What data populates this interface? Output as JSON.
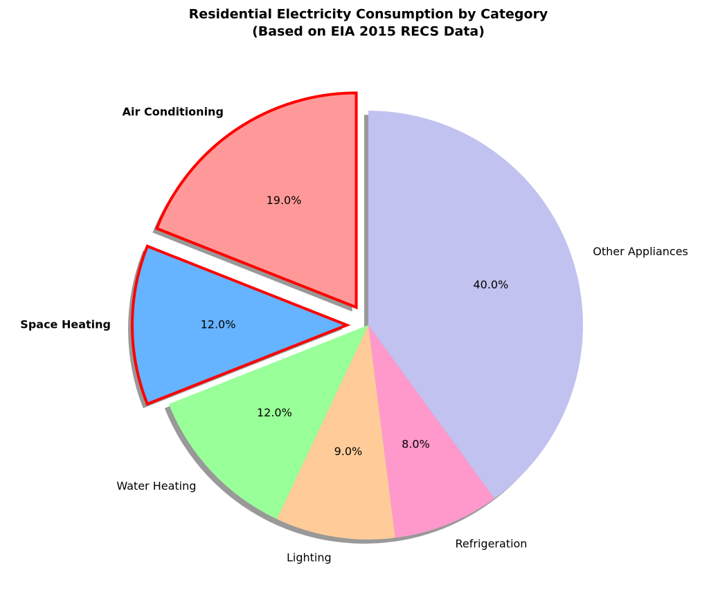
{
  "chart_data": {
    "type": "pie",
    "title": "Residential Electricity Consumption by Category",
    "subtitle": "(Based on EIA 2015 RECS Data)",
    "categories": [
      "Air Conditioning",
      "Space Heating",
      "Water Heating",
      "Lighting",
      "Refrigeration",
      "Other Appliances"
    ],
    "values": [
      19,
      12,
      12,
      9,
      8,
      40
    ],
    "value_labels": [
      "19.0%",
      "12.0%",
      "12.0%",
      "9.0%",
      "8.0%",
      "40.0%"
    ],
    "colors": [
      "#ff9999",
      "#66b3ff",
      "#99ff99",
      "#ffcc99",
      "#ff99cc",
      "#c2c2f0"
    ],
    "explode": [
      0.1,
      0.1,
      0,
      0,
      0,
      0
    ],
    "highlight_color": "#ff0000",
    "start_angle": 90,
    "shadow": true
  }
}
